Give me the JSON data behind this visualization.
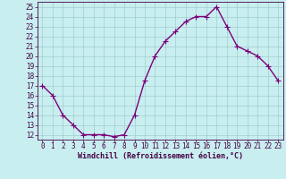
{
  "x": [
    0,
    1,
    2,
    3,
    4,
    5,
    6,
    7,
    8,
    9,
    10,
    11,
    12,
    13,
    14,
    15,
    16,
    17,
    18,
    19,
    20,
    21,
    22,
    23
  ],
  "y": [
    17,
    16,
    14,
    13,
    12,
    12,
    12,
    11.8,
    12,
    14,
    17.5,
    20,
    21.5,
    22.5,
    23.5,
    24,
    24,
    25,
    23,
    21,
    20.5,
    20,
    19,
    17.5
  ],
  "line_color": "#7b007b",
  "marker_color": "#7b007b",
  "bg_color": "#c8eef0",
  "grid_color": "#a0cdd0",
  "xlabel": "Windchill (Refroidissement éolien,°C)",
  "ylim": [
    11.5,
    25.5
  ],
  "xlim": [
    -0.5,
    23.5
  ],
  "yticks": [
    12,
    13,
    14,
    15,
    16,
    17,
    18,
    19,
    20,
    21,
    22,
    23,
    24,
    25
  ],
  "xticks": [
    0,
    1,
    2,
    3,
    4,
    5,
    6,
    7,
    8,
    9,
    10,
    11,
    12,
    13,
    14,
    15,
    16,
    17,
    18,
    19,
    20,
    21,
    22,
    23
  ],
  "xlabel_fontsize": 6.0,
  "tick_fontsize": 5.5,
  "line_width": 1.0,
  "marker_size": 2.2
}
